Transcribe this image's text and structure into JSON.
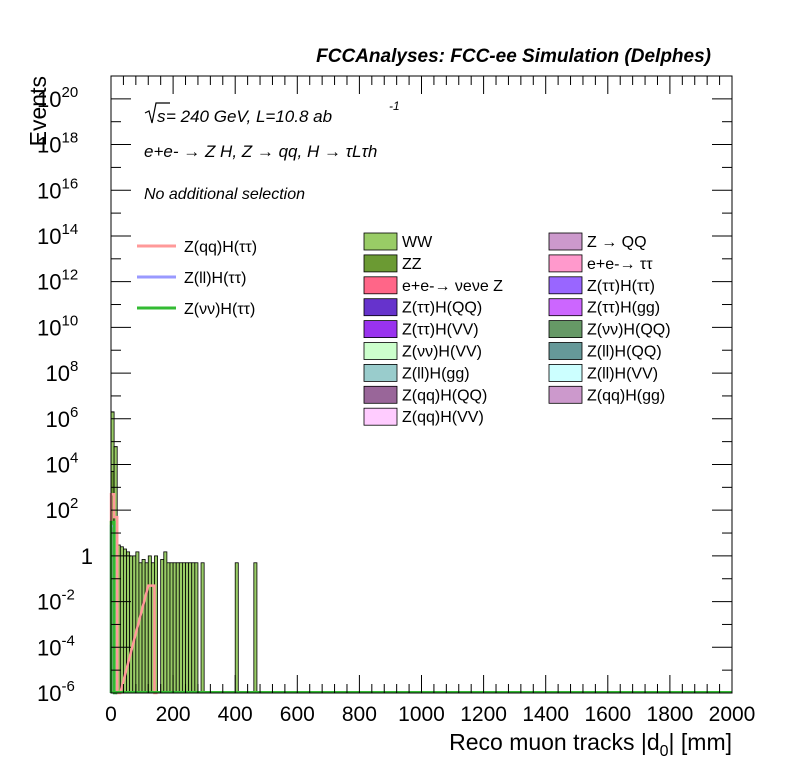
{
  "chart_data": {
    "type": "bar",
    "title": "FCCAnalyses: FCC-ee Simulation (Delphes)",
    "xlabel": "Reco muon tracks |d0| [mm]",
    "ylabel": "Events",
    "xlim": [
      0,
      2000
    ],
    "ylim": [
      1e-06,
      1e+21
    ],
    "yscale": "log",
    "x_ticks": [
      "0",
      "200",
      "400",
      "600",
      "800",
      "1000",
      "1200",
      "1400",
      "1600",
      "1800",
      "2000"
    ],
    "y_ticks": [
      {
        "base": "10",
        "exp": "-6"
      },
      {
        "base": "10",
        "exp": "-4"
      },
      {
        "base": "10",
        "exp": "-2"
      },
      {
        "base": "1",
        "exp": ""
      },
      {
        "base": "10",
        "exp": "2"
      },
      {
        "base": "10",
        "exp": "4"
      },
      {
        "base": "10",
        "exp": "6"
      },
      {
        "base": "10",
        "exp": "8"
      },
      {
        "base": "10",
        "exp": "10"
      },
      {
        "base": "10",
        "exp": "12"
      },
      {
        "base": "10",
        "exp": "14"
      },
      {
        "base": "10",
        "exp": "16"
      },
      {
        "base": "10",
        "exp": "18"
      },
      {
        "base": "10",
        "exp": "20"
      }
    ],
    "annotations": {
      "energy_root": "s",
      "energy": " = 240 GeV, L=10.8 ab",
      "energy_exp": "-1",
      "process": "e+e- → Z H, Z → qq, H → τLτh",
      "selection": "No additional selection"
    },
    "bin_width": 10,
    "background_stack": [
      {
        "name": "ZZ",
        "color": "#6b9a33",
        "bins": [
          [
            0,
            10,
            5000
          ]
        ]
      },
      {
        "name": "WW",
        "color": "#99cc66",
        "bins": [
          [
            0,
            10,
            2000000
          ],
          [
            10,
            20,
            60000
          ],
          [
            20,
            30,
            3
          ],
          [
            30,
            40,
            2.5
          ],
          [
            40,
            50,
            2
          ],
          [
            50,
            60,
            1.5
          ],
          [
            60,
            70,
            1
          ],
          [
            70,
            80,
            1
          ],
          [
            80,
            90,
            1.5
          ],
          [
            90,
            100,
            0.5
          ],
          [
            100,
            110,
            0.7
          ],
          [
            110,
            120,
            0.5
          ],
          [
            120,
            130,
            1
          ],
          [
            130,
            140,
            0.5
          ],
          [
            140,
            150,
            1
          ],
          [
            160,
            170,
            0.7
          ],
          [
            170,
            180,
            1.5
          ],
          [
            180,
            190,
            0.5
          ],
          [
            190,
            200,
            0.5
          ],
          [
            200,
            210,
            0.5
          ],
          [
            210,
            220,
            0.5
          ],
          [
            220,
            230,
            0.5
          ],
          [
            230,
            240,
            0.5
          ],
          [
            240,
            250,
            0.5
          ],
          [
            250,
            260,
            0.5
          ],
          [
            260,
            270,
            0.5
          ],
          [
            270,
            280,
            0.5
          ],
          [
            290,
            300,
            0.5
          ],
          [
            400,
            410,
            0.5
          ],
          [
            460,
            470,
            0.5
          ]
        ]
      },
      {
        "name": "Z(qq)H(ττ)",
        "color": "#ff6688",
        "bins": [
          [
            0,
            10,
            100
          ],
          [
            10,
            20,
            1
          ]
        ]
      },
      {
        "name": "Z(ll)H(ττ)",
        "color": "#8866ee",
        "bins": [
          [
            0,
            10,
            300
          ]
        ]
      }
    ],
    "signal_series": [
      {
        "name": "Z(qq)H(ττ)",
        "color": "#ff9999",
        "bins": [
          [
            0,
            10,
            500
          ],
          [
            10,
            20,
            50
          ],
          [
            20,
            30,
            1e-06
          ],
          [
            120,
            140,
            0.05
          ],
          [
            140,
            150,
            1e-06
          ]
        ]
      },
      {
        "name": "Z(ll)H(ττ)",
        "color": "#9999ff",
        "bins": [
          [
            0,
            10,
            20
          ],
          [
            10,
            20,
            1e-06
          ]
        ]
      },
      {
        "name": "Z(νν)H(ττ)",
        "color": "#33bb33",
        "bins": [
          [
            0,
            10,
            30
          ],
          [
            10,
            20,
            1e-06
          ]
        ]
      }
    ],
    "legend_signal": [
      {
        "label": "Z(qq)H(ττ)",
        "color": "#ff9999"
      },
      {
        "label": "Z(ll)H(ττ)",
        "color": "#9999ff"
      },
      {
        "label": "Z(νν)H(ττ)",
        "color": "#33bb33"
      }
    ],
    "legend_col1": [
      {
        "label": "WW",
        "color": "#99cc66"
      },
      {
        "label": "ZZ",
        "color": "#6b9a33"
      },
      {
        "label": "e+e-→ νeνe Z",
        "color": "#ff6688"
      },
      {
        "label": "Z(ττ)H(QQ)",
        "color": "#6633cc"
      },
      {
        "label": "Z(ττ)H(VV)",
        "color": "#9933ee"
      },
      {
        "label": "Z(νν)H(VV)",
        "color": "#ccffcc"
      },
      {
        "label": "Z(ll)H(gg)",
        "color": "#99cccc"
      },
      {
        "label": "Z(qq)H(QQ)",
        "color": "#996699"
      },
      {
        "label": "Z(qq)H(VV)",
        "color": "#ffccff"
      }
    ],
    "legend_col2": [
      {
        "label": "Z → QQ",
        "color": "#cc99cc"
      },
      {
        "label": "e+e-→ ττ",
        "color": "#ff99cc"
      },
      {
        "label": "Z(ττ)H(ττ)",
        "color": "#9966ff"
      },
      {
        "label": "Z(ττ)H(gg)",
        "color": "#cc66ff"
      },
      {
        "label": "Z(νν)H(QQ)",
        "color": "#669966"
      },
      {
        "label": "Z(ll)H(QQ)",
        "color": "#669999"
      },
      {
        "label": "Z(ll)H(VV)",
        "color": "#ccffff"
      },
      {
        "label": "Z(qq)H(gg)",
        "color": "#cc99cc"
      }
    ]
  }
}
